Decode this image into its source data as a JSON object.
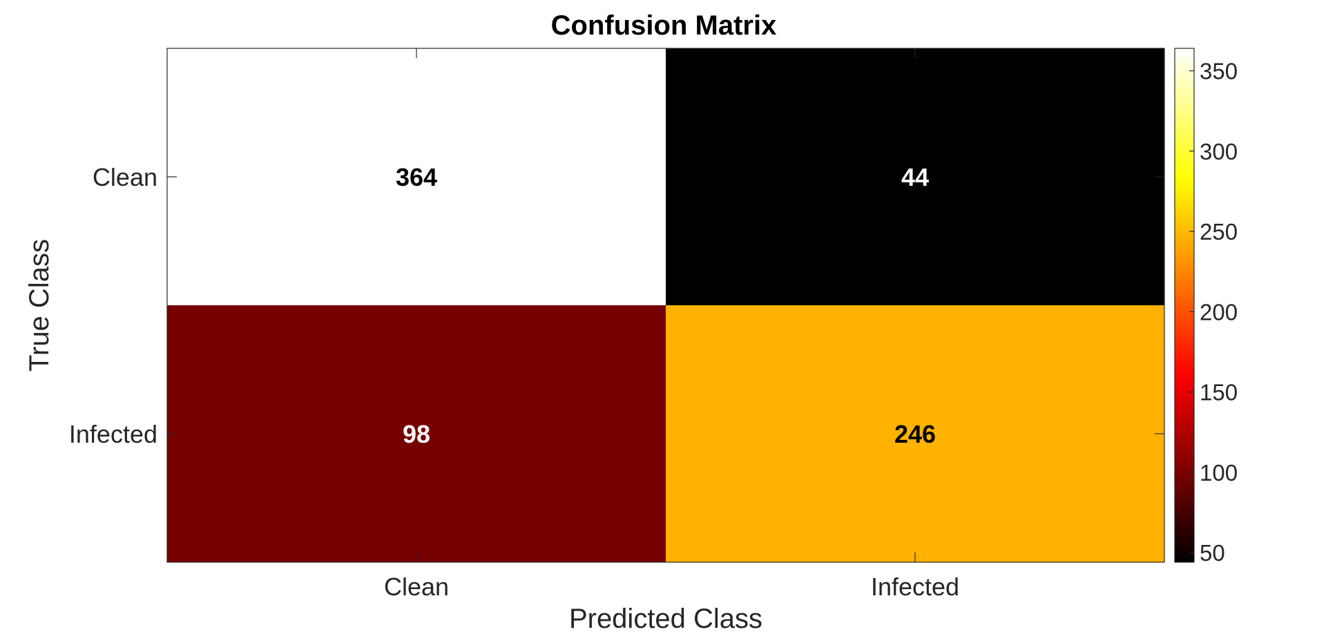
{
  "chart_data": {
    "type": "heatmap",
    "title": "Confusion Matrix",
    "xlabel": "Predicted Class",
    "ylabel": "True Class",
    "x_categories": [
      "Clean",
      "Infected"
    ],
    "y_categories": [
      "Clean",
      "Infected"
    ],
    "values": [
      [
        364,
        44
      ],
      [
        98,
        246
      ]
    ],
    "colormap": "hot",
    "colorbar": {
      "min": 44,
      "max": 364,
      "ticks": [
        50,
        100,
        150,
        200,
        250,
        300,
        350
      ],
      "tick_labels": [
        "50",
        "100",
        "150",
        "200",
        "250",
        "300",
        "350"
      ]
    },
    "cell_text_colors": [
      [
        "#000000",
        "#ffffff"
      ],
      [
        "#ffffff",
        "#000000"
      ]
    ]
  }
}
